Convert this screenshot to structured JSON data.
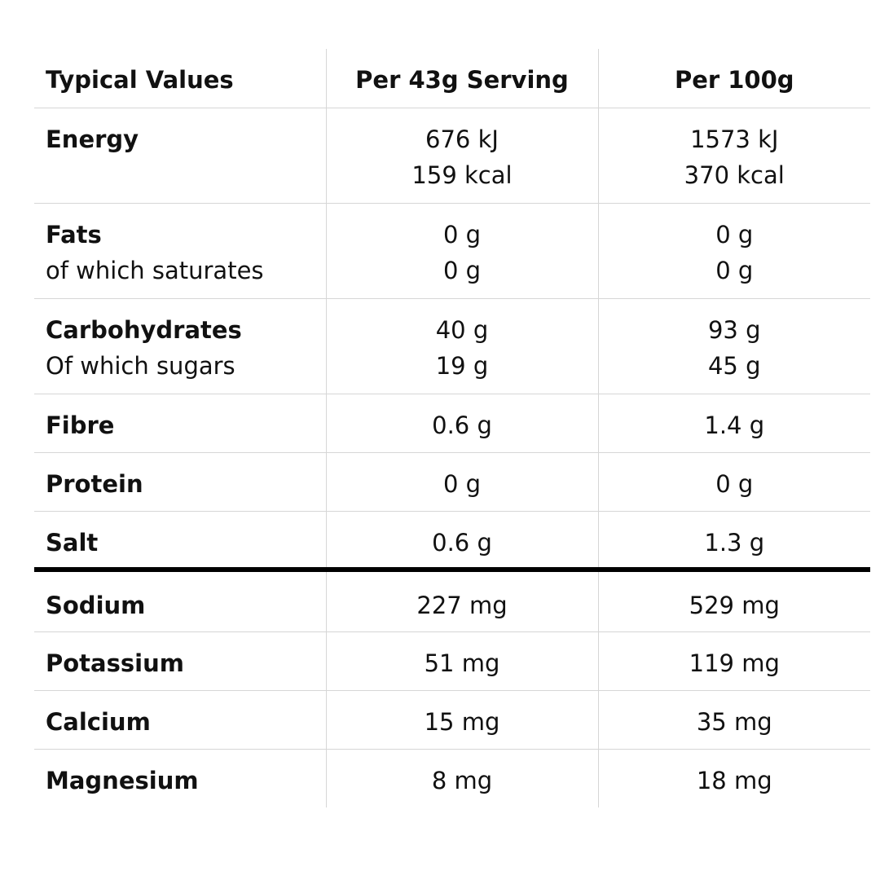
{
  "header": {
    "label": "Typical Values",
    "per_serving": "Per 43g Serving",
    "per_100g": "Per 100g"
  },
  "rows": [
    {
      "label": "Energy",
      "serving": [
        "676 kJ",
        "159 kcal"
      ],
      "per100": [
        "1573 kJ",
        "370 kcal"
      ]
    },
    {
      "label": "Fats",
      "sublabel": "of which saturates",
      "serving": [
        "0 g",
        "0 g"
      ],
      "per100": [
        "0 g",
        "0 g"
      ]
    },
    {
      "label": "Carbohydrates",
      "sublabel": "Of which sugars",
      "serving": [
        "40 g",
        "19 g"
      ],
      "per100": [
        "93 g",
        "45 g"
      ]
    },
    {
      "label": "Fibre",
      "serving": [
        "0.6 g"
      ],
      "per100": [
        "1.4 g"
      ]
    },
    {
      "label": "Protein",
      "serving": [
        "0 g"
      ],
      "per100": [
        "0 g"
      ]
    },
    {
      "label": "Salt",
      "serving": [
        "0.6 g"
      ],
      "per100": [
        "1.3 g"
      ]
    },
    {
      "label": "Sodium",
      "serving": [
        "227 mg"
      ],
      "per100": [
        "529 mg"
      ]
    },
    {
      "label": "Potassium",
      "serving": [
        "51 mg"
      ],
      "per100": [
        "119 mg"
      ]
    },
    {
      "label": "Calcium",
      "serving": [
        "15 mg"
      ],
      "per100": [
        "35 mg"
      ]
    },
    {
      "label": "Magnesium",
      "serving": [
        "8 mg"
      ],
      "per100": [
        "18 mg"
      ]
    }
  ]
}
